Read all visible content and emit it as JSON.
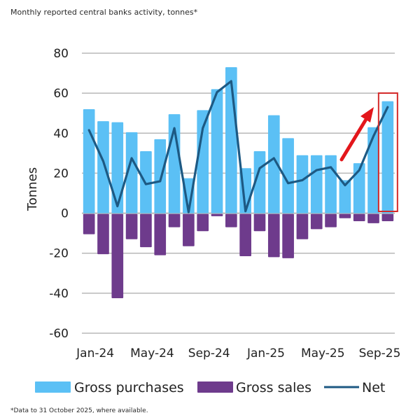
{
  "subtitle": "Monthly reported central banks activity, tonnes*",
  "footnote": "*Data to 31 October 2025, where available.",
  "colors": {
    "purchases": "#5bc0f5",
    "sales": "#6e3b8c",
    "net": "#1d5983",
    "grid": "#b8b8b8",
    "highlight": "#d42a2a",
    "arrow": "#e3161b"
  },
  "chart_data": {
    "type": "bar",
    "title": "Monthly reported central banks activity, tonnes*",
    "xlabel": "",
    "ylabel": "Tonnes",
    "ylim": [
      -60,
      80
    ],
    "yticks": [
      80,
      60,
      40,
      20,
      0,
      -20,
      -40,
      -60
    ],
    "ytick_labels": [
      "80",
      "60",
      "40",
      "20",
      "0",
      "-20",
      "-40",
      "-60"
    ],
    "grid": true,
    "legend_position": "bottom",
    "categories": [
      "Jan-24",
      "Feb-24",
      "Mar-24",
      "Apr-24",
      "May-24",
      "Jun-24",
      "Jul-24",
      "Aug-24",
      "Sep-24",
      "Oct-24",
      "Nov-24",
      "Dec-24",
      "Jan-25",
      "Feb-25",
      "Mar-25",
      "Apr-25",
      "May-25",
      "Jun-25",
      "Jul-25",
      "Aug-25",
      "Sep-25",
      "Oct-25"
    ],
    "xtick_labels": [
      {
        "index": 0,
        "label": "Jan-24"
      },
      {
        "index": 4,
        "label": "May-24"
      },
      {
        "index": 8,
        "label": "Sep-24"
      },
      {
        "index": 12,
        "label": "Jan-25"
      },
      {
        "index": 16,
        "label": "May-25"
      },
      {
        "index": 20,
        "label": "Sep-25"
      }
    ],
    "series": [
      {
        "name": "Gross purchases",
        "type": "bar",
        "values": [
          52,
          46,
          45.5,
          40.5,
          31,
          37,
          49.5,
          17.5,
          51.5,
          62,
          73,
          22.5,
          31,
          49,
          37.5,
          29,
          29,
          29,
          16.5,
          25,
          43,
          56
        ]
      },
      {
        "name": "Gross sales",
        "type": "bar",
        "values": [
          -10.5,
          -20.5,
          -42.5,
          -13,
          -17,
          -21,
          -7,
          -16.5,
          -9,
          -1.5,
          -7,
          -21.5,
          -9,
          -22,
          -22.5,
          -13,
          -8,
          -7,
          -2.5,
          -4,
          -5,
          -4
        ]
      },
      {
        "name": "Net",
        "type": "line",
        "values": [
          41.5,
          26,
          3.5,
          27.5,
          14.5,
          16,
          42.5,
          0.5,
          42.5,
          60.5,
          66,
          1,
          22.5,
          27.5,
          15,
          16.5,
          21.5,
          23,
          14,
          21.5,
          38.5,
          53
        ]
      }
    ],
    "annotations": [
      {
        "type": "highlight-box",
        "category": "Oct-25"
      },
      {
        "type": "arrow",
        "description": "red upward arrow pointing to latest month"
      }
    ]
  },
  "legend": [
    {
      "label": "Gross purchases",
      "kind": "swatch",
      "series": "purchases"
    },
    {
      "label": "Gross sales",
      "kind": "swatch",
      "series": "sales"
    },
    {
      "label": "Net",
      "kind": "line",
      "series": "net"
    }
  ]
}
